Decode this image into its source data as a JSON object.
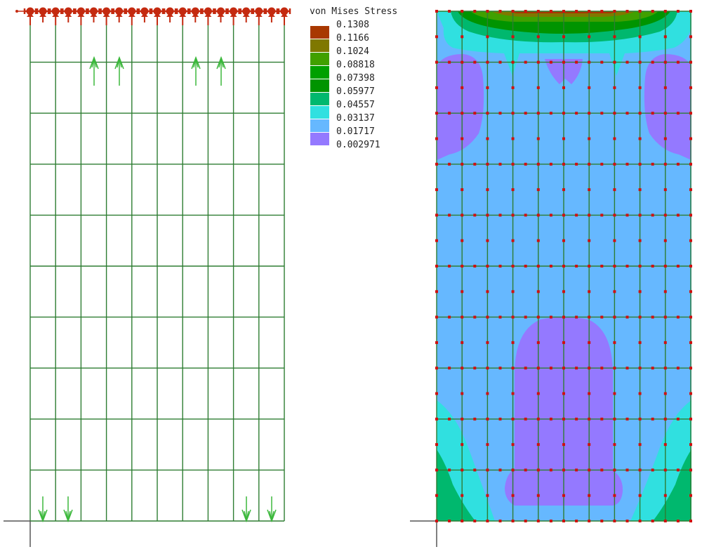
{
  "legend": {
    "title": "von Mises Stress",
    "levels": [
      {
        "value": "0.1308",
        "color": "#a83800"
      },
      {
        "value": "0.1166",
        "color": "#7f7800"
      },
      {
        "value": "0.1024",
        "color": "#40a000"
      },
      {
        "value": "0.08818",
        "color": "#00a000"
      },
      {
        "value": "0.07398",
        "color": "#009400"
      },
      {
        "value": "0.05977",
        "color": "#00b86e"
      },
      {
        "value": "0.04557",
        "color": "#30e0e0"
      },
      {
        "value": "0.03137",
        "color": "#66b8ff"
      },
      {
        "value": "0.01717",
        "color": "#9479ff"
      },
      {
        "value": "0.002971",
        "color": null
      }
    ]
  },
  "colors": {
    "mesh": "#2e7d32",
    "support": "#c42a10",
    "load_arrow": "#3cb83c",
    "node": "#d01010",
    "axis": "#555555"
  },
  "left_panel": {
    "boundary_condition": "fixed-top-edge",
    "loads": "point-forces"
  },
  "right_panel": {
    "result": "von Mises Stress contour"
  }
}
